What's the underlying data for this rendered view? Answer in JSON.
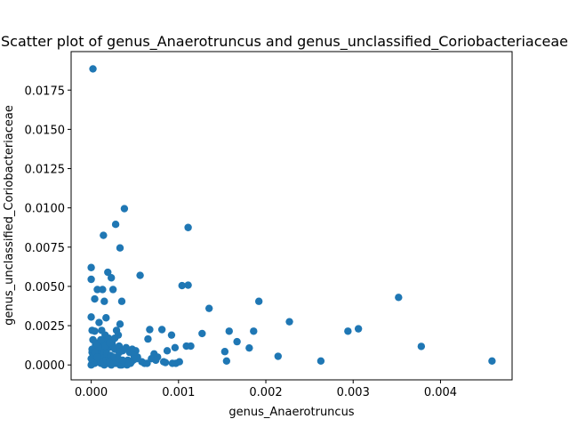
{
  "chart_data": {
    "type": "scatter",
    "title": "Scatter plot of genus_Anaerotruncus and genus_unclassified_Coriobacteriaceae",
    "xlabel": "genus_Anaerotruncus",
    "ylabel": "genus_unclassified_Coriobacteriaceae",
    "xlim": [
      -0.00023,
      0.00482
    ],
    "ylim": [
      -0.00095,
      0.01995
    ],
    "xticks": [
      0.0,
      0.001,
      0.002,
      0.003,
      0.004
    ],
    "xtick_labels": [
      "0.000",
      "0.001",
      "0.002",
      "0.003",
      "0.004"
    ],
    "yticks": [
      0.0,
      0.0025,
      0.005,
      0.0075,
      0.01,
      0.0125,
      0.015,
      0.0175
    ],
    "ytick_labels": [
      "0.0000",
      "0.0025",
      "0.0050",
      "0.0075",
      "0.0100",
      "0.0125",
      "0.0150",
      "0.0175"
    ],
    "grid": false,
    "marker_color": "#1f77b4",
    "series": [
      {
        "x": [
          2e-05,
          0.00038,
          0.00028,
          0.00014,
          0.00111,
          0.00033,
          0.0,
          0.00019,
          0.00056,
          0.0,
          0.00023,
          0.00104,
          0.00111,
          7e-05,
          0.00013,
          0.00025,
          4e-05,
          0.00035,
          0.00135,
          0.00192,
          0.00352,
          9e-05,
          0.00017,
          0.0,
          0.00015,
          0.00033,
          0.00067,
          0.00081,
          0.00227,
          1e-05,
          4e-05,
          0.00029,
          0.00031,
          0.00158,
          0.00186,
          0.00167,
          0.00294,
          0.00306,
          0.00127,
          0.00092,
          0.00065,
          0.00072,
          0.00181,
          0.00378,
          0.00114,
          0.00087,
          0.00096,
          0.00109,
          0.00076,
          0.00153,
          0.00214,
          0.00085,
          0.00155,
          0.00263,
          0.00459,
          0.00048,
          0.00053,
          0.00061,
          0.00097,
          2e-05,
          5e-05,
          8e-05,
          0.00012,
          0.00016,
          0.0002,
          0.00024,
          0.00027,
          0.00032,
          0.00036,
          0.0004,
          0.00044,
          0.00047,
          0.00051,
          1e-05,
          3e-05,
          6e-05,
          0.0001,
          0.00014,
          0.00018,
          0.00022,
          0.00026,
          0.0003,
          0.00034,
          0.00038,
          0.00042,
          0.00046,
          0.0005,
          1e-05,
          4e-05,
          7e-05,
          0.00011,
          0.00015,
          0.00019,
          0.00023,
          0.00028,
          0.00033,
          0.00037,
          0.00041,
          0.00045,
          0.0,
          3e-05,
          9e-05,
          0.00013,
          0.00017,
          0.00021,
          0.00025,
          0.00029,
          0.00035,
          0.00039,
          0.00043,
          0.0,
          2e-05,
          6e-05,
          0.0001,
          0.00014,
          0.00018,
          0.00022,
          0.00026,
          0.00031,
          0.00036,
          0.00049,
          0.00052,
          0.00058,
          0.00064,
          0.00069,
          0.00074,
          0.00083,
          0.00093,
          0.00101,
          0.00012,
          0.00016,
          0.0002,
          0.00024,
          3e-05,
          8e-05,
          5e-05,
          0.00011,
          1e-05,
          4e-05,
          7e-05,
          0.00016,
          0.00021,
          0.00027,
          0.00032
        ],
        "y": [
          0.01885,
          0.00995,
          0.00895,
          0.00825,
          0.00875,
          0.00745,
          0.0062,
          0.0059,
          0.0057,
          0.00545,
          0.00555,
          0.00505,
          0.00508,
          0.0048,
          0.0048,
          0.0048,
          0.0042,
          0.00405,
          0.0036,
          0.00405,
          0.0043,
          0.0027,
          0.003,
          0.00305,
          0.00405,
          0.0026,
          0.00225,
          0.00225,
          0.00275,
          0.0022,
          0.00215,
          0.0022,
          0.0019,
          0.00215,
          0.00215,
          0.00148,
          0.00215,
          0.0023,
          0.002,
          0.0019,
          0.00165,
          0.0007,
          0.00108,
          0.00118,
          0.0012,
          0.0009,
          0.0011,
          0.0012,
          0.0005,
          0.00085,
          0.00055,
          0.00015,
          0.00025,
          0.00025,
          0.00025,
          0.0003,
          0.0005,
          0.0001,
          0.0001,
          0.0016,
          0.0014,
          0.0013,
          0.0012,
          0.0015,
          0.0011,
          0.0013,
          0.001,
          0.0012,
          0.0009,
          0.0011,
          0.0008,
          0.001,
          0.0009,
          0.0008,
          0.0007,
          0.0006,
          0.0005,
          0.0006,
          0.0004,
          0.0005,
          0.0003,
          0.0004,
          0.0003,
          0.0002,
          0.0003,
          0.0002,
          0.0004,
          0.0001,
          0.0001,
          0.0002,
          0.0001,
          0.0,
          0.0001,
          0.0,
          0.0001,
          0.0,
          0.0001,
          0.0,
          0.0001,
          0.0,
          0.0003,
          0.0004,
          0.0002,
          0.0003,
          0.0002,
          0.0001,
          0.0002,
          0.0,
          0.0002,
          0.0001,
          0.0004,
          0.0007,
          0.0006,
          0.0008,
          0.0009,
          0.0007,
          0.0006,
          0.0005,
          0.0004,
          0.0003,
          0.0006,
          0.0004,
          0.0002,
          0.0001,
          0.0004,
          0.0003,
          0.0002,
          0.0001,
          0.0002,
          0.0022,
          0.0019,
          0.0017,
          0.0015,
          0.0009,
          0.0011,
          0.0013,
          0.0016,
          0.001,
          0.0008,
          0.0005,
          0.0012,
          0.0014,
          0.0017,
          0.0008
        ]
      }
    ]
  }
}
